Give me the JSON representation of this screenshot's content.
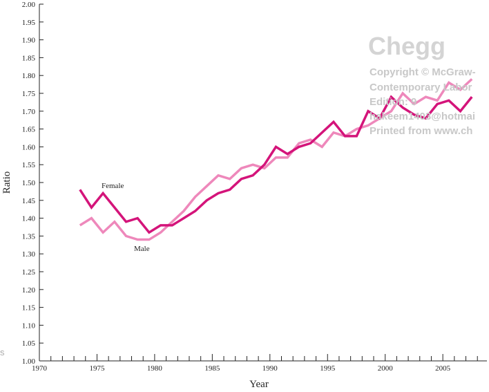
{
  "chart_data": {
    "type": "line",
    "title": "",
    "xlabel": "Year",
    "ylabel": "Ratio",
    "xlim": [
      1970,
      2009
    ],
    "ylim": [
      1.0,
      2.0
    ],
    "x_ticks": [
      "1970",
      "1975",
      "1980",
      "1985",
      "1990",
      "1995",
      "2000",
      "2005"
    ],
    "x_tick_values": [
      1970,
      1975,
      1980,
      1985,
      1990,
      1995,
      2000,
      2005
    ],
    "y_ticks": [
      "1.00",
      "1.05",
      "1.10",
      "1.15",
      "1.20",
      "1.25",
      "1.30",
      "1.35",
      "1.40",
      "1.45",
      "1.50",
      "1.55",
      "1.60",
      "1.65",
      "1.70",
      "1.75",
      "1.80",
      "1.85",
      "1.90",
      "1.95",
      "2.00"
    ],
    "x": [
      1974,
      1975,
      1976,
      1977,
      1978,
      1979,
      1980,
      1981,
      1982,
      1983,
      1984,
      1985,
      1986,
      1987,
      1988,
      1989,
      1990,
      1991,
      1992,
      1993,
      1994,
      1995,
      1996,
      1997,
      1998,
      1999,
      2000,
      2001,
      2002,
      2003,
      2004,
      2005,
      2006,
      2007,
      2008
    ],
    "series": [
      {
        "name": "Female",
        "color": "#d4147a",
        "values": [
          1.48,
          1.43,
          1.47,
          1.43,
          1.39,
          1.4,
          1.36,
          1.38,
          1.38,
          1.4,
          1.42,
          1.45,
          1.47,
          1.48,
          1.51,
          1.52,
          1.55,
          1.6,
          1.58,
          1.6,
          1.61,
          1.64,
          1.67,
          1.63,
          1.63,
          1.7,
          1.68,
          1.74,
          1.71,
          1.69,
          1.68,
          1.72,
          1.73,
          1.7,
          1.74
        ]
      },
      {
        "name": "Male",
        "color": "#ee88bb",
        "values": [
          1.38,
          1.4,
          1.36,
          1.39,
          1.35,
          1.34,
          1.34,
          1.36,
          1.39,
          1.42,
          1.46,
          1.49,
          1.52,
          1.51,
          1.54,
          1.55,
          1.54,
          1.57,
          1.57,
          1.61,
          1.62,
          1.6,
          1.64,
          1.63,
          1.65,
          1.66,
          1.68,
          1.7,
          1.75,
          1.72,
          1.74,
          1.73,
          1.78,
          1.76,
          1.79
        ]
      }
    ],
    "annotations": [
      "Female",
      "Male"
    ],
    "grid": false,
    "legend": "none"
  },
  "watermark": {
    "logo": "Chegg",
    "lines": [
      "Copyright © McGraw-",
      "Contemporary Labor",
      "Edition: 9",
      "hakeem1403@hotmai",
      "Printed from www.ch"
    ]
  },
  "left_fragment": "s"
}
